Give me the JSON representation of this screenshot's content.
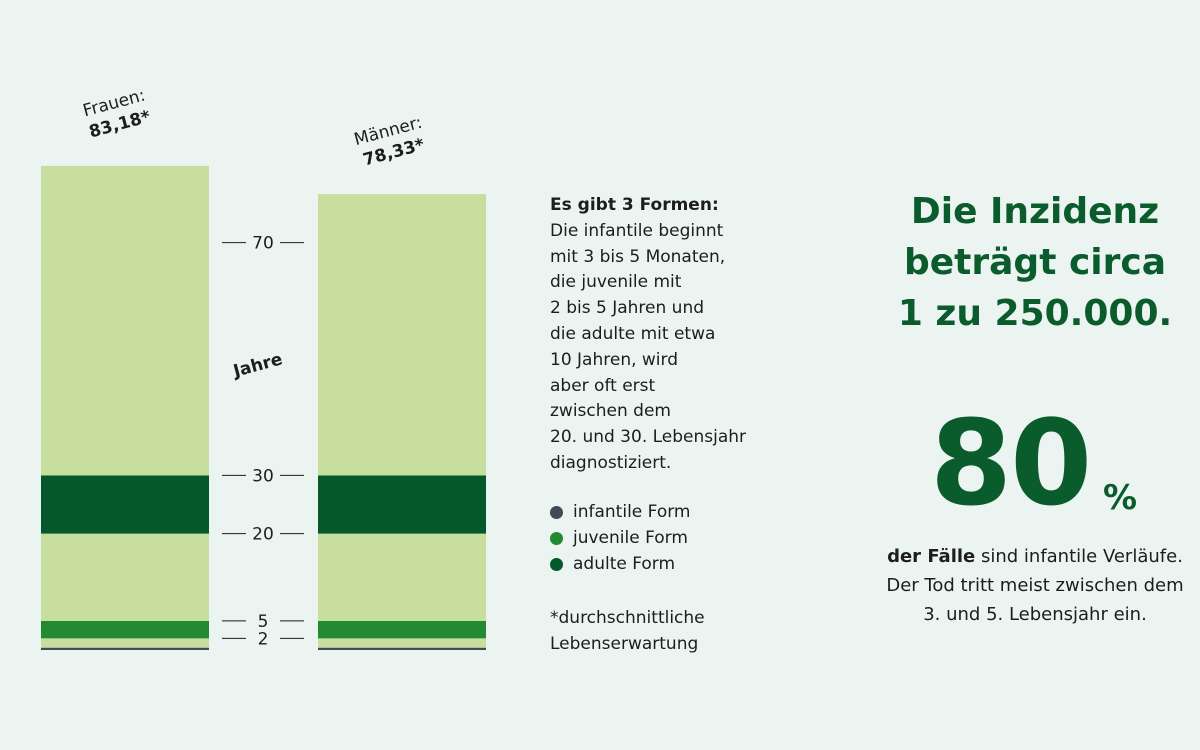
{
  "colors": {
    "background": "#ebf4f1",
    "light": "#c8de9e",
    "medium": "#228b32",
    "dark": "#04582a",
    "infantile": "#3f4b59",
    "accent": "#0b5c2d"
  },
  "chart_data": {
    "type": "bar",
    "ylabel": "Jahre",
    "ticks": [
      2,
      5,
      20,
      30,
      70
    ],
    "bars": [
      {
        "label": "Frauen:",
        "value_label": "83,18*",
        "total": 83.18
      },
      {
        "label": "Männer:",
        "value_label": "78,33*",
        "total": 78.33
      }
    ],
    "bands": [
      {
        "form": "infantile Form",
        "from": 0,
        "to": 0.4,
        "color": "infantile"
      },
      {
        "form": "",
        "from": 0.4,
        "to": 2,
        "color": "light"
      },
      {
        "form": "juvenile Form",
        "from": 2,
        "to": 5,
        "color": "medium"
      },
      {
        "form": "",
        "from": 5,
        "to": 20,
        "color": "light"
      },
      {
        "form": "adulte Form",
        "from": 20,
        "to": 30,
        "color": "dark"
      },
      {
        "form": "",
        "from": 30,
        "to": "total",
        "color": "light"
      }
    ],
    "legend": [
      {
        "label": "infantile Form",
        "color": "#3f4b59"
      },
      {
        "label": "juvenile Form",
        "color": "#228b32"
      },
      {
        "label": "adulte Form",
        "color": "#04582a"
      }
    ]
  },
  "info": {
    "title": "Es gibt 3 Formen:",
    "body": "Die infantile beginnt\nmit 3 bis 5 Monaten,\ndie juvenile mit\n2 bis 5 Jahren und\ndie adulte mit etwa\n10 Jahren, wird\naber oft erst\nzwischen dem\n20. und 30. Lebensjahr\ndiagnostiziert."
  },
  "footnote": "*durchschnittliche\n Lebenserwartung",
  "headline": "Die Inzidenz\nbeträgt circa\n1 zu 250.000.",
  "stat": {
    "number": "80",
    "unit": "%",
    "desc_bold": "der Fälle",
    "desc_rest": " sind infantile Verläufe. Der Tod tritt meist zwischen dem 3. und 5. Lebensjahr ein."
  }
}
